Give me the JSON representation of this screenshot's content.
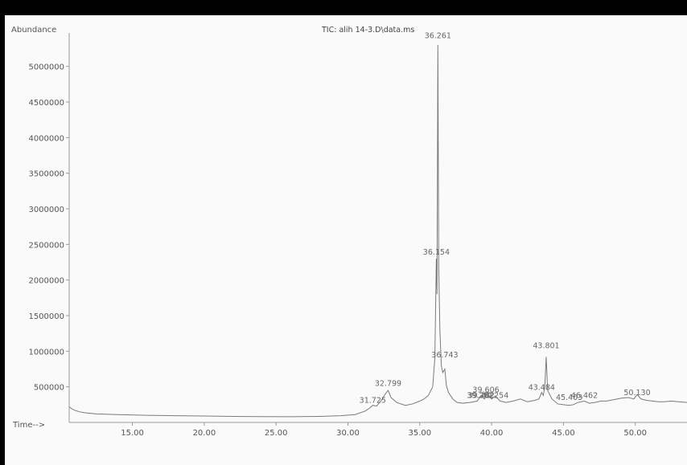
{
  "chart_data": {
    "type": "line",
    "title": "TIC: alih 14-3.D\\data.ms",
    "ylabel": "Abundance",
    "xlabel": "Time-->",
    "xlim": [
      10.6,
      53.6
    ],
    "ylim": [
      0,
      5470000
    ],
    "y_ticks": [
      500000,
      1000000,
      1500000,
      2000000,
      2500000,
      3000000,
      3500000,
      4000000,
      4500000,
      5000000
    ],
    "y_tick_labels": [
      "500000",
      "1000000",
      "1500000",
      "2000000",
      "2500000",
      "3000000",
      "3500000",
      "4000000",
      "4500000",
      "5000000"
    ],
    "x_ticks": [
      15,
      20,
      25,
      30,
      35,
      40,
      45,
      50
    ],
    "x_tick_labels": [
      "15.00",
      "20.00",
      "25.00",
      "30.00",
      "35.00",
      "40.00",
      "45.00",
      "50.00"
    ],
    "series": [
      {
        "x": [
          10.6,
          10.8,
          11.0,
          11.3,
          11.7,
          12.5,
          14.0,
          16.0,
          18.0,
          20.0,
          22.0,
          24.0,
          26.0,
          28.0,
          29.5,
          30.5,
          31.2,
          31.5,
          31.725,
          32.0,
          32.4,
          32.6,
          32.799,
          33.0,
          33.4,
          34.0,
          34.5,
          35.0,
          35.3,
          35.6,
          35.9,
          36.05,
          36.154,
          36.2,
          36.261,
          36.32,
          36.4,
          36.5,
          36.6,
          36.743,
          36.85,
          37.0,
          37.3,
          37.6,
          38.0,
          38.5,
          39.0,
          39.202,
          39.282,
          39.5,
          39.606,
          39.8,
          40.0,
          40.254,
          40.6,
          41.0,
          41.5,
          42.0,
          42.5,
          43.0,
          43.3,
          43.484,
          43.6,
          43.7,
          43.801,
          43.9,
          44.2,
          44.6,
          45.0,
          45.403,
          45.7,
          46.0,
          46.462,
          46.8,
          47.2,
          47.6,
          48.0,
          48.5,
          49.0,
          49.5,
          49.9,
          50.13,
          50.4,
          50.8,
          51.2,
          51.6,
          52.0,
          52.5,
          53.0,
          53.6
        ],
        "y": [
          220000,
          190000,
          170000,
          150000,
          135000,
          120000,
          110000,
          100000,
          95000,
          90000,
          85000,
          82000,
          80000,
          85000,
          95000,
          110000,
          160000,
          200000,
          240000,
          230000,
          330000,
          400000,
          450000,
          350000,
          280000,
          240000,
          260000,
          300000,
          330000,
          380000,
          500000,
          900000,
          2300000,
          1800000,
          5300000,
          2200000,
          1300000,
          800000,
          700000,
          750000,
          520000,
          420000,
          330000,
          280000,
          270000,
          280000,
          300000,
          360000,
          380000,
          330000,
          390000,
          380000,
          330000,
          370000,
          300000,
          280000,
          300000,
          330000,
          290000,
          310000,
          330000,
          420000,
          380000,
          500000,
          920000,
          450000,
          330000,
          260000,
          250000,
          240000,
          250000,
          280000,
          300000,
          270000,
          280000,
          300000,
          300000,
          320000,
          340000,
          350000,
          330000,
          390000,
          330000,
          310000,
          300000,
          290000,
          290000,
          300000,
          290000,
          280000
        ]
      }
    ],
    "peak_labels": [
      {
        "text": "36.261",
        "rt": 36.261,
        "y": 5350000
      },
      {
        "text": "36.154",
        "rt": 36.154,
        "y": 2310000
      },
      {
        "text": "36.743",
        "rt": 36.743,
        "y": 870000
      },
      {
        "text": "32.799",
        "rt": 32.799,
        "y": 470000
      },
      {
        "text": "31.725",
        "rt": 31.725,
        "y": 230000
      },
      {
        "text": "39.606",
        "rt": 39.606,
        "y": 380000
      },
      {
        "text": "39.282",
        "rt": 39.282,
        "y": 300000
      },
      {
        "text": "39.202",
        "rt": 39.202,
        "y": 300000
      },
      {
        "text": "40.254",
        "rt": 40.254,
        "y": 300000
      },
      {
        "text": "43.801",
        "rt": 43.801,
        "y": 1000000
      },
      {
        "text": "43.484",
        "rt": 43.484,
        "y": 410000
      },
      {
        "text": "45.403",
        "rt": 45.403,
        "y": 270000
      },
      {
        "text": "46.462",
        "rt": 46.462,
        "y": 300000
      },
      {
        "text": "50.130",
        "rt": 50.13,
        "y": 340000
      }
    ],
    "colors": {
      "trace": "#7a7a7a",
      "axis": "#9a9a9a",
      "text": "#555555",
      "background": "#fafafa",
      "frame": "#000000"
    }
  }
}
